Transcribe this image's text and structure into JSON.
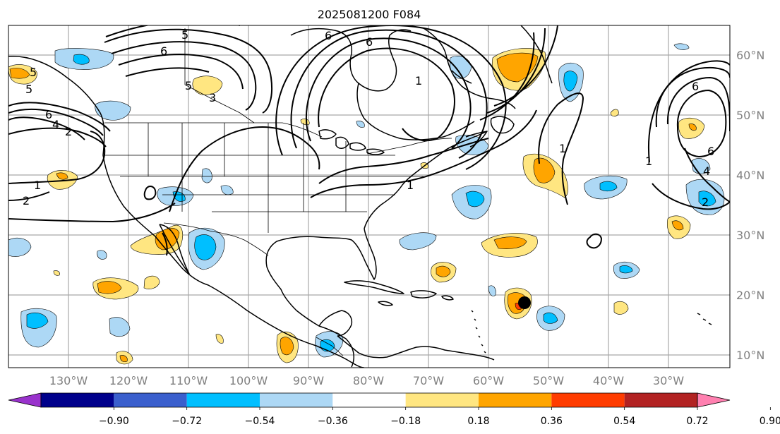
{
  "title": "2025081200 F084",
  "colors": {
    "map_background": "#ffffff",
    "grid": "#a8a8a8",
    "coastline": "#000000",
    "contour": "#000000",
    "marker": "#000000"
  },
  "axes": {
    "lon_ticks": [
      "130°W",
      "120°W",
      "110°W",
      "100°W",
      "90°W",
      "80°W",
      "70°W",
      "60°W",
      "50°W",
      "40°W",
      "30°W"
    ],
    "lat_ticks": [
      "60°N",
      "50°N",
      "40°N",
      "30°N",
      "20°N",
      "10°N"
    ]
  },
  "colorbar": {
    "labels": [
      "−0.90",
      "−0.72",
      "−0.54",
      "−0.36",
      "−0.18",
      "0.18",
      "0.36",
      "0.54",
      "0.72",
      "0.90"
    ],
    "colors": [
      "#9932cc",
      "#00008b",
      "#3a5fcd",
      "#00bfff",
      "#add8f5",
      "#ffffff",
      "#ffe681",
      "#ffa500",
      "#ff3c00",
      "#b22222",
      "#ff80b0"
    ]
  },
  "contour_labels": [
    {
      "text": "6"
    },
    {
      "text": "5"
    },
    {
      "text": "6"
    },
    {
      "text": "6"
    },
    {
      "text": "5"
    },
    {
      "text": "6"
    },
    {
      "text": "4"
    },
    {
      "text": "5"
    },
    {
      "text": "2"
    },
    {
      "text": "1"
    },
    {
      "text": "2"
    },
    {
      "text": "1"
    },
    {
      "text": "1"
    },
    {
      "text": "1"
    },
    {
      "text": "3"
    },
    {
      "text": "6"
    },
    {
      "text": "4"
    },
    {
      "text": "2"
    },
    {
      "text": "1"
    },
    {
      "text": "5"
    },
    {
      "text": "6"
    }
  ]
}
